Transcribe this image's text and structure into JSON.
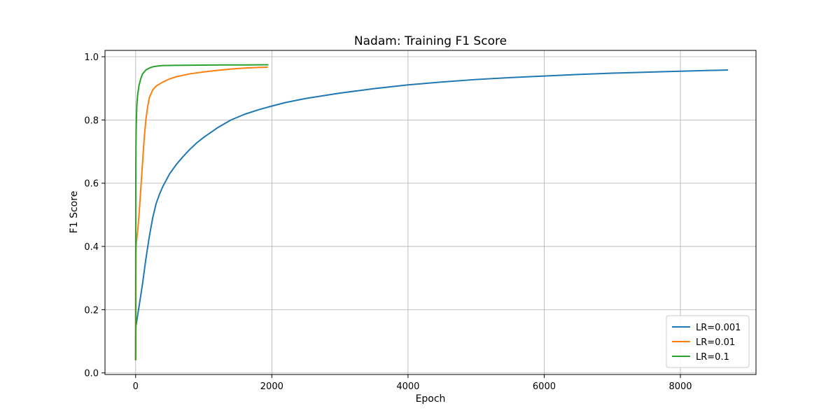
{
  "chart_data": {
    "type": "line",
    "title": "Nadam: Training F1 Score",
    "xlabel": "Epoch",
    "ylabel": "F1 Score",
    "xlim": [
      -450,
      9110
    ],
    "ylim": [
      -0.005,
      1.02
    ],
    "xticks": [
      0,
      2000,
      4000,
      6000,
      8000
    ],
    "xtick_labels": [
      "0",
      "2000",
      "4000",
      "6000",
      "8000"
    ],
    "yticks": [
      0.0,
      0.2,
      0.4,
      0.6,
      0.8,
      1.0
    ],
    "ytick_labels": [
      "0.0",
      "0.2",
      "0.4",
      "0.6",
      "0.8",
      "1.0"
    ],
    "grid": true,
    "legend_position": "bottom-right",
    "series": [
      {
        "name": "LR=0.001",
        "color": "#1f77b4",
        "x": [
          0,
          1,
          2,
          5,
          10,
          20,
          50,
          100,
          150,
          200,
          250,
          300,
          350,
          400,
          500,
          600,
          700,
          800,
          900,
          1000,
          1200,
          1400,
          1600,
          1800,
          2000,
          2200,
          2500,
          3000,
          3500,
          4000,
          4500,
          5000,
          5500,
          6000,
          6500,
          7000,
          7500,
          8000,
          8500,
          8700
        ],
        "y": [
          0.04,
          0.1,
          0.13,
          0.15,
          0.155,
          0.17,
          0.21,
          0.28,
          0.36,
          0.43,
          0.49,
          0.535,
          0.565,
          0.59,
          0.63,
          0.66,
          0.685,
          0.708,
          0.728,
          0.745,
          0.775,
          0.8,
          0.818,
          0.832,
          0.844,
          0.855,
          0.868,
          0.885,
          0.899,
          0.911,
          0.92,
          0.928,
          0.934,
          0.939,
          0.944,
          0.948,
          0.951,
          0.954,
          0.957,
          0.958
        ]
      },
      {
        "name": "LR=0.01",
        "color": "#ff7f0e",
        "x": [
          0,
          1,
          2,
          5,
          10,
          20,
          30,
          50,
          75,
          100,
          125,
          150,
          175,
          200,
          250,
          300,
          400,
          500,
          600,
          800,
          1000,
          1200,
          1400,
          1600,
          1800,
          1940
        ],
        "y": [
          0.04,
          0.2,
          0.3,
          0.38,
          0.41,
          0.43,
          0.45,
          0.5,
          0.58,
          0.66,
          0.74,
          0.8,
          0.84,
          0.87,
          0.895,
          0.907,
          0.92,
          0.93,
          0.937,
          0.946,
          0.952,
          0.957,
          0.961,
          0.964,
          0.966,
          0.967
        ]
      },
      {
        "name": "LR=0.1",
        "color": "#2ca02c",
        "x": [
          0,
          1,
          2,
          3,
          5,
          7,
          10,
          15,
          20,
          30,
          50,
          75,
          100,
          150,
          200,
          250,
          300,
          400,
          500,
          700,
          1000,
          1300,
          1600,
          1950
        ],
        "y": [
          0.04,
          0.4,
          0.58,
          0.66,
          0.72,
          0.76,
          0.79,
          0.83,
          0.855,
          0.88,
          0.91,
          0.93,
          0.945,
          0.958,
          0.964,
          0.968,
          0.97,
          0.972,
          0.9725,
          0.973,
          0.9735,
          0.974,
          0.974,
          0.9745
        ]
      }
    ]
  }
}
